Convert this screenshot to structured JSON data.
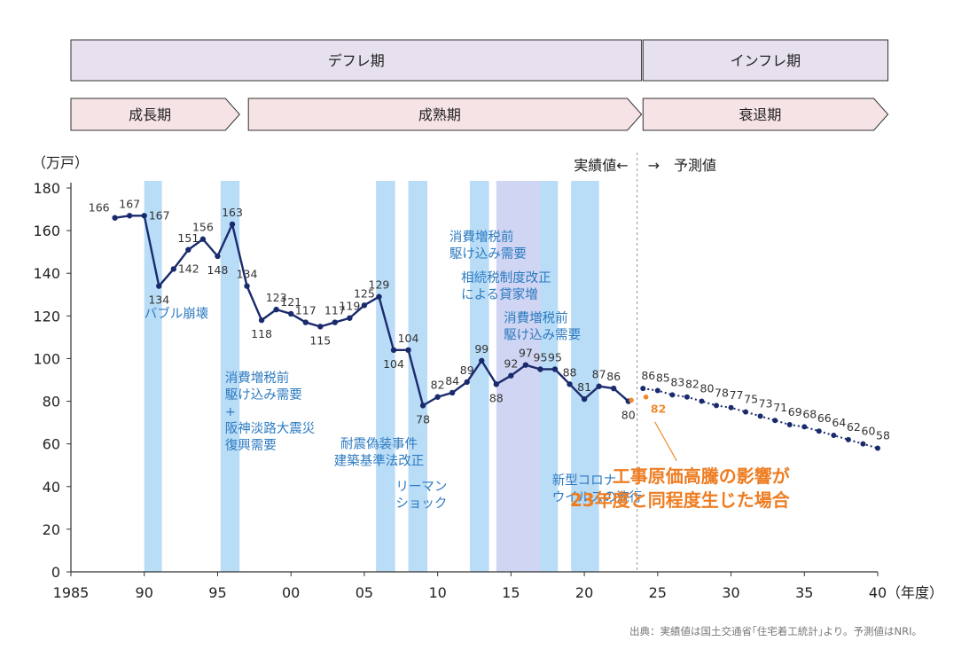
{
  "phase_bars": [
    {
      "label": "デフレ期",
      "from": 1985,
      "to": 2023.9,
      "shape": "rect"
    },
    {
      "label": "インフレ期",
      "from": 2024,
      "to": 2040.7,
      "shape": "rect"
    },
    {
      "label": "成長期",
      "from": 1985,
      "to": 1996.5,
      "shape": "arrow"
    },
    {
      "label": "成熟期",
      "from": 1997.1,
      "to": 2023.9,
      "shape": "arrow"
    },
    {
      "label": "衰退期",
      "from": 2024,
      "to": 2040.7,
      "shape": "arrow"
    }
  ],
  "colors": {
    "phase_top_fill": "#e7e0ee",
    "phase_bottom_fill": "#f6e3e5",
    "phase_border": "#333333",
    "band": "#b9dcf7",
    "band_dark": "#cfd5f2",
    "series": "#1a2b6d",
    "forecast_alt": "#ee8a2a",
    "annotation_blue": "#2c7ac0",
    "annotation_orange": "#ee7d22",
    "axis": "#333333",
    "divider": "#999999"
  },
  "chart_data": {
    "type": "line",
    "ylabel": "（万戸）",
    "xlabel": "（年度）",
    "xlim": [
      1985,
      2040
    ],
    "ylim": [
      0,
      180
    ],
    "x_ticks": [
      1985,
      1990,
      1995,
      2000,
      2005,
      2010,
      2015,
      2020,
      2025,
      2030,
      2035,
      2040
    ],
    "x_tick_labels": [
      "1985",
      "90",
      "95",
      "00",
      "05",
      "10",
      "15",
      "20",
      "25",
      "30",
      "35",
      "40"
    ],
    "y_ticks": [
      0,
      20,
      40,
      60,
      80,
      100,
      120,
      140,
      160,
      180
    ],
    "actual_label": "実績値←",
    "forecast_label": "→　予測値",
    "divider_x": 2023.6,
    "series": [
      {
        "kind": "actual",
        "x": [
          1988,
          1989,
          1990,
          1991,
          1992,
          1993,
          1994,
          1995,
          1996,
          1997,
          1998,
          1999,
          2000,
          2001,
          2002,
          2003,
          2004,
          2005,
          2006,
          2007,
          2008,
          2009,
          2010,
          2011,
          2012,
          2013,
          2014,
          2015,
          2016,
          2017,
          2018,
          2019,
          2020,
          2021,
          2022,
          2023
        ],
        "y": [
          166,
          167,
          167,
          134,
          142,
          151,
          156,
          148,
          163,
          134,
          118,
          123,
          121,
          117,
          115,
          117,
          119,
          125,
          129,
          104,
          104,
          78,
          82,
          84,
          89,
          99,
          88,
          92,
          97,
          95,
          95,
          88,
          81,
          87,
          86,
          80
        ],
        "labels": [
          "166",
          "167",
          "167",
          "134",
          "142",
          "151",
          "156",
          "148",
          "163",
          "134",
          "118",
          "123",
          "121",
          "117",
          "115",
          "117",
          "119",
          "125",
          "129",
          "104",
          "104",
          "78",
          "82",
          "84",
          "89",
          "99",
          "88",
          "92",
          "97",
          "95",
          "95",
          "88",
          "81",
          "87",
          "86",
          "80"
        ],
        "label_pos": [
          "left",
          "above",
          "right",
          "below",
          "right",
          "above",
          "above",
          "below",
          "above",
          "above",
          "below",
          "above",
          "above",
          "above",
          "below",
          "above",
          "above",
          "above",
          "above",
          "below",
          "above",
          "below",
          "above",
          "above",
          "above",
          "above",
          "below",
          "above",
          "above",
          "above",
          "above",
          "above",
          "above",
          "above",
          "above",
          "below"
        ]
      },
      {
        "kind": "forecast",
        "x": [
          2024,
          2025,
          2026,
          2027,
          2028,
          2029,
          2030,
          2031,
          2032,
          2033,
          2034,
          2035,
          2036,
          2037,
          2038,
          2039,
          2040
        ],
        "y": [
          86,
          85,
          83,
          82,
          80,
          78,
          77,
          75,
          73,
          71,
          69,
          68,
          66,
          64,
          62,
          60,
          58
        ],
        "labels": [
          "86",
          "85",
          "83",
          "82",
          "80",
          "78",
          "77",
          "75",
          "73",
          "71",
          "69",
          "68",
          "66",
          "64",
          "62",
          "60",
          "58"
        ]
      },
      {
        "kind": "alternative",
        "x": [
          2023.2,
          2024.2
        ],
        "y": [
          80.5,
          82
        ],
        "labels": [
          "82"
        ]
      }
    ],
    "bands": [
      {
        "from": 1990,
        "to": 1991.2
      },
      {
        "from": 1995.2,
        "to": 1996.5
      },
      {
        "from": 2005.8,
        "to": 2007.1
      },
      {
        "from": 2008,
        "to": 2009.3
      },
      {
        "from": 2012.2,
        "to": 2013.5
      },
      {
        "from": 2014,
        "to": 2017,
        "dark": true
      },
      {
        "from": 2017,
        "to": 2018.2
      },
      {
        "from": 2019.1,
        "to": 2021
      }
    ],
    "annotations": [
      {
        "lines": [
          "バブル崩壊"
        ],
        "x": 1990.0,
        "y": 119,
        "anchor": "start",
        "color": "blue"
      },
      {
        "lines": [
          "消費増税前",
          "駆け込み需要",
          "+",
          "阪神淡路大震災",
          "復興需要"
        ],
        "x": 1995.5,
        "y": 89,
        "anchor": "start",
        "color": "blue"
      },
      {
        "lines": [
          "耐震偽装事件",
          "建築基準法改正"
        ],
        "x": 2006.0,
        "y": 58,
        "anchor": "middle",
        "color": "blue"
      },
      {
        "lines": [
          "リーマン",
          "ショック"
        ],
        "x": 2008.9,
        "y": 38,
        "anchor": "middle",
        "color": "blue"
      },
      {
        "lines": [
          "消費増税前",
          "駆け込み需要"
        ],
        "x": 2010.8,
        "y": 155,
        "anchor": "start",
        "color": "blue"
      },
      {
        "lines": [
          "相続税制度改正",
          "による貸家増"
        ],
        "x": 2011.6,
        "y": 136,
        "anchor": "start",
        "color": "blue"
      },
      {
        "lines": [
          "消費増税前",
          "駆け込み需要"
        ],
        "x": 2014.5,
        "y": 117,
        "anchor": "start",
        "color": "blue"
      },
      {
        "lines": [
          "新型コロナ",
          "ウイルスの流行"
        ],
        "x": 2017.8,
        "y": 41,
        "anchor": "start",
        "color": "blue"
      },
      {
        "lines": [
          "工事原価高騰の影響が",
          "23年度と同程度生じた場合"
        ],
        "x": 2034.0,
        "y": 42,
        "anchor": "end",
        "color": "orange",
        "big": true
      }
    ]
  },
  "source_note": "出典：実績値は国土交通省｢住宅着工統計｣より。予測値はNRI。"
}
